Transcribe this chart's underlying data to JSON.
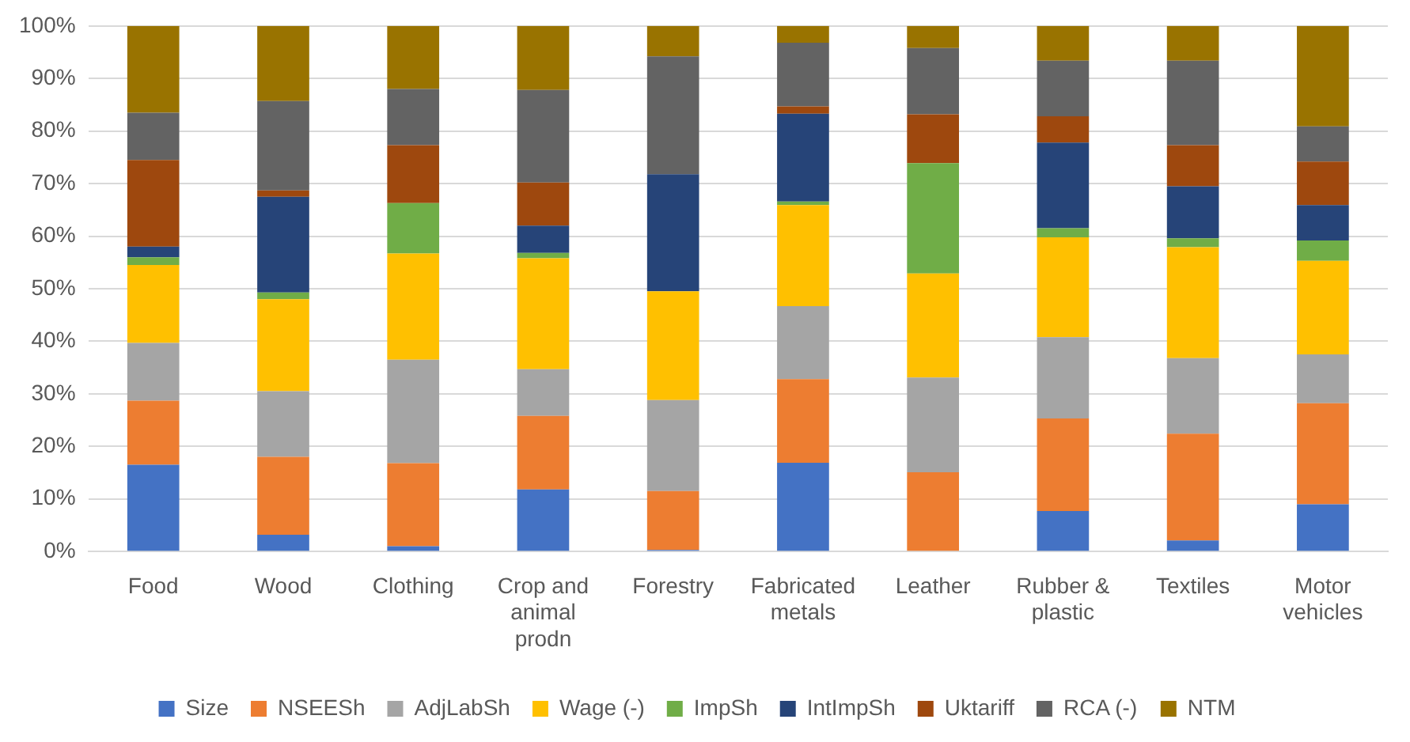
{
  "chart_data": {
    "type": "bar",
    "stacked": true,
    "categories": [
      "Food",
      "Wood",
      "Clothing",
      "Crop and animal prodn",
      "Forestry",
      "Fabricated metals",
      "Leather",
      "Rubber & plastic",
      "Textiles",
      "Motor vehicles"
    ],
    "series": [
      {
        "name": "Size",
        "color": "#4472c4",
        "values": [
          16.5,
          3.2,
          1,
          11.8,
          0.3,
          16.9,
          0,
          7.7,
          2.1,
          9
        ]
      },
      {
        "name": "NSEESh",
        "color": "#ed7d31",
        "values": [
          12.2,
          14.8,
          15.8,
          14,
          11.2,
          15.9,
          15.1,
          17.6,
          20.3,
          19.2
        ]
      },
      {
        "name": "AdjLabSh",
        "color": "#a5a5a5",
        "values": [
          11,
          12.5,
          19.7,
          8.9,
          17.3,
          13.9,
          18,
          15.5,
          14.4,
          9.3
        ]
      },
      {
        "name": "Wage (-)",
        "color": "#ffc000",
        "values": [
          14.8,
          17.5,
          20.2,
          21.1,
          20.7,
          19.2,
          19.8,
          19,
          21.1,
          17.8
        ]
      },
      {
        "name": "ImpSh",
        "color": "#70ad47",
        "values": [
          1.5,
          1.3,
          9.6,
          1,
          0,
          0.7,
          21,
          1.7,
          1.7,
          3.9
        ]
      },
      {
        "name": "IntImpSh",
        "color": "#264478",
        "values": [
          2,
          18.2,
          0,
          5.2,
          22.3,
          16.7,
          0,
          16.3,
          9.9,
          6.7
        ]
      },
      {
        "name": "Uktariff",
        "color": "#9e480e",
        "values": [
          16.5,
          1.2,
          11,
          8.2,
          0,
          1.4,
          9.3,
          5,
          7.8,
          8.3
        ]
      },
      {
        "name": "RCA (-)",
        "color": "#636363",
        "values": [
          9,
          17,
          10.7,
          17.6,
          22.4,
          12.1,
          12.6,
          10.6,
          16.1,
          6.7
        ]
      },
      {
        "name": "NTM",
        "color": "#997300",
        "values": [
          16.5,
          14.3,
          12,
          12.2,
          5.8,
          3.2,
          4.2,
          6.6,
          6.6,
          19.1
        ]
      }
    ],
    "ylim": [
      0,
      100
    ],
    "yticks": [
      {
        "value": 0,
        "label": "0%"
      },
      {
        "value": 10,
        "label": "10%"
      },
      {
        "value": 20,
        "label": "20%"
      },
      {
        "value": 30,
        "label": "30%"
      },
      {
        "value": 40,
        "label": "40%"
      },
      {
        "value": 50,
        "label": "50%"
      },
      {
        "value": 60,
        "label": "60%"
      },
      {
        "value": 70,
        "label": "70%"
      },
      {
        "value": 80,
        "label": "80%"
      },
      {
        "value": 90,
        "label": "90%"
      },
      {
        "value": 100,
        "label": "100%"
      }
    ],
    "grid": "y",
    "legend": "bottom"
  }
}
